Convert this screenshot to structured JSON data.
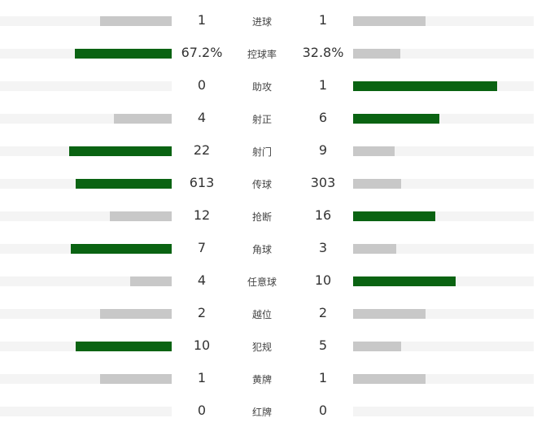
{
  "colors": {
    "leading": "#0a6312",
    "trailing": "#c8c8c8",
    "track": "#f4f4f4"
  },
  "stats": [
    {
      "label": "进球",
      "home": "1",
      "away": "1",
      "home_share": 0.5
    },
    {
      "label": "控球率",
      "home": "67.2%",
      "away": "32.8%",
      "home_share": 0.672
    },
    {
      "label": "助攻",
      "home": "0",
      "away": "1",
      "home_share": 0
    },
    {
      "label": "射正",
      "home": "4",
      "away": "6",
      "home_share": 0.4
    },
    {
      "label": "射门",
      "home": "22",
      "away": "9",
      "home_share": 0.71
    },
    {
      "label": "传球",
      "home": "613",
      "away": "303",
      "home_share": 0.669
    },
    {
      "label": "抢断",
      "home": "12",
      "away": "16",
      "home_share": 0.429
    },
    {
      "label": "角球",
      "home": "7",
      "away": "3",
      "home_share": 0.7
    },
    {
      "label": "任意球",
      "home": "4",
      "away": "10",
      "home_share": 0.286
    },
    {
      "label": "越位",
      "home": "2",
      "away": "2",
      "home_share": 0.5
    },
    {
      "label": "犯规",
      "home": "10",
      "away": "5",
      "home_share": 0.667
    },
    {
      "label": "黄牌",
      "home": "1",
      "away": "1",
      "home_share": 0.5
    },
    {
      "label": "红牌",
      "home": "0",
      "away": "0",
      "home_share": null
    }
  ]
}
